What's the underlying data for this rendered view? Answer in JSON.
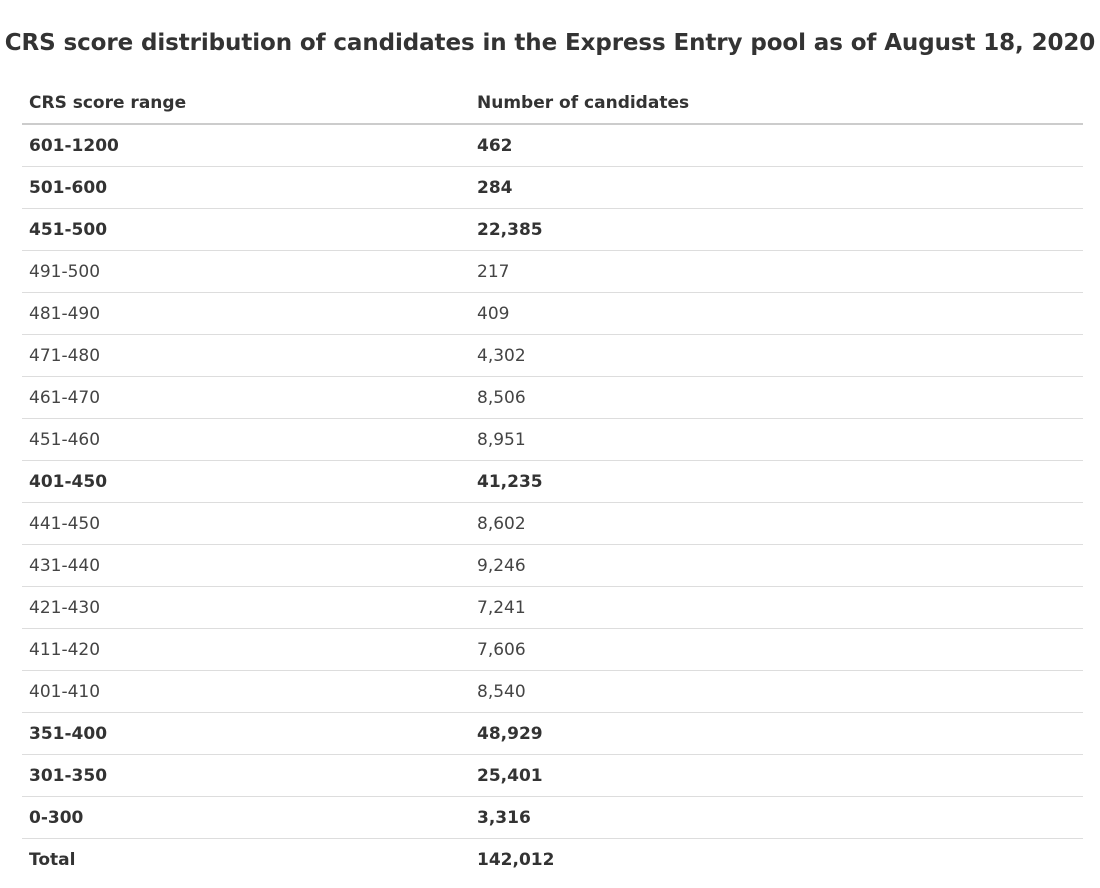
{
  "caption": "CRS score distribution of candidates in the Express Entry pool as of August 18, 2020",
  "columns": {
    "range": "CRS score range",
    "count": "Number of candidates"
  },
  "rows": [
    {
      "range": "601-1200",
      "count": "462",
      "bold": true
    },
    {
      "range": "501-600",
      "count": "284",
      "bold": true
    },
    {
      "range": "451-500",
      "count": "22,385",
      "bold": true
    },
    {
      "range": "491-500",
      "count": "217",
      "bold": false
    },
    {
      "range": "481-490",
      "count": "409",
      "bold": false
    },
    {
      "range": "471-480",
      "count": "4,302",
      "bold": false
    },
    {
      "range": "461-470",
      "count": "8,506",
      "bold": false
    },
    {
      "range": "451-460",
      "count": "8,951",
      "bold": false
    },
    {
      "range": "401-450",
      "count": "41,235",
      "bold": true
    },
    {
      "range": "441-450",
      "count": "8,602",
      "bold": false
    },
    {
      "range": "431-440",
      "count": "9,246",
      "bold": false
    },
    {
      "range": "421-430",
      "count": "7,241",
      "bold": false
    },
    {
      "range": "411-420",
      "count": "7,606",
      "bold": false
    },
    {
      "range": "401-410",
      "count": "8,540",
      "bold": false
    },
    {
      "range": "351-400",
      "count": "48,929",
      "bold": true
    },
    {
      "range": "301-350",
      "count": "25,401",
      "bold": true
    },
    {
      "range": "0-300",
      "count": "3,316",
      "bold": true
    },
    {
      "range": "Total",
      "count": "142,012",
      "bold": true,
      "total": true
    }
  ]
}
